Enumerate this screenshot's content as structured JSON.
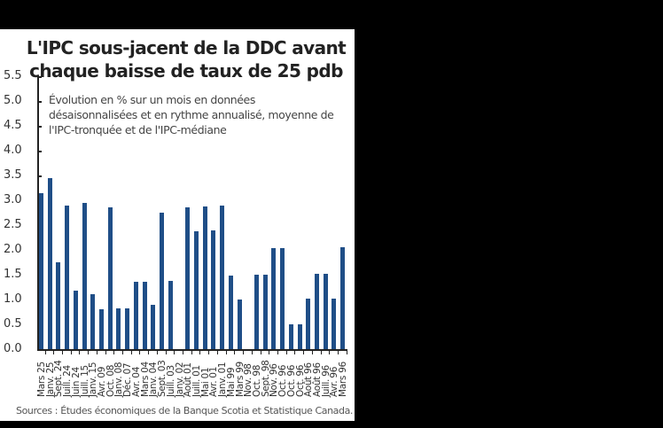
{
  "chart_data": {
    "type": "bar",
    "title": "L'IPC sous-jacent de la DDC avant chaque baisse de taux de 25 pdb",
    "subtitle": "Évolution en % sur un mois en données désaisonnalisées et en rythme annualisé, moyenne de l'IPC-tronquée et de l'IPC-médiane",
    "xlabel": "",
    "ylabel": "",
    "ylim": [
      0,
      5.5
    ],
    "yticks": [
      "0.0",
      "0.5",
      "1.0",
      "1.5",
      "2.0",
      "2.5",
      "3.0",
      "3.5",
      "4.0",
      "4.5",
      "5.0",
      "5.5"
    ],
    "grid": false,
    "bar_color": "#1f4e87",
    "categories": [
      "Mars 25",
      "Janv. 25",
      "Sept. 24",
      "Juill. 24",
      "Juin 24",
      "Juill. 15",
      "Janv. 15",
      "Avr. 09",
      "Oct. 08",
      "Janv. 08",
      "Déc. 07",
      "Avr. 04",
      "Mars 04",
      "Janv. 04",
      "Sept. 03",
      "Juill. 03",
      "Janv. 02",
      "Août 01",
      "Juill. 01",
      "Mai 01",
      "Avr. 01",
      "Janv. 01",
      "Mai 99",
      "Mars 99",
      "Nov. 98",
      "Oct. 98",
      "Sept. 98",
      "Nov. 96",
      "Oct. 96",
      "Oct. 96",
      "Oct. 96",
      "Août 96",
      "Août 96",
      "Juill. 96",
      "Avr. 96",
      "Mars 96"
    ],
    "values": [
      3.15,
      3.45,
      1.75,
      2.9,
      1.17,
      2.95,
      1.1,
      0.8,
      2.85,
      0.83,
      0.83,
      1.35,
      1.35,
      0.9,
      2.75,
      1.37,
      0.0,
      2.85,
      2.38,
      2.87,
      2.4,
      2.9,
      1.48,
      1.0,
      0.0,
      1.5,
      1.5,
      2.03,
      2.03,
      0.5,
      0.5,
      1.02,
      1.52,
      1.52,
      1.02,
      2.05
    ]
  },
  "title": "L'IPC sous-jacent de la DDC avant chaque baisse de taux de 25 pdb",
  "subtitle": "Évolution en % sur un mois en données désaisonnalisées et en rythme annualisé, moyenne de l'IPC-tronquée et de l'IPC-médiane",
  "source": "Sources : Études économiques de la Banque Scotia et Statistique Canada."
}
